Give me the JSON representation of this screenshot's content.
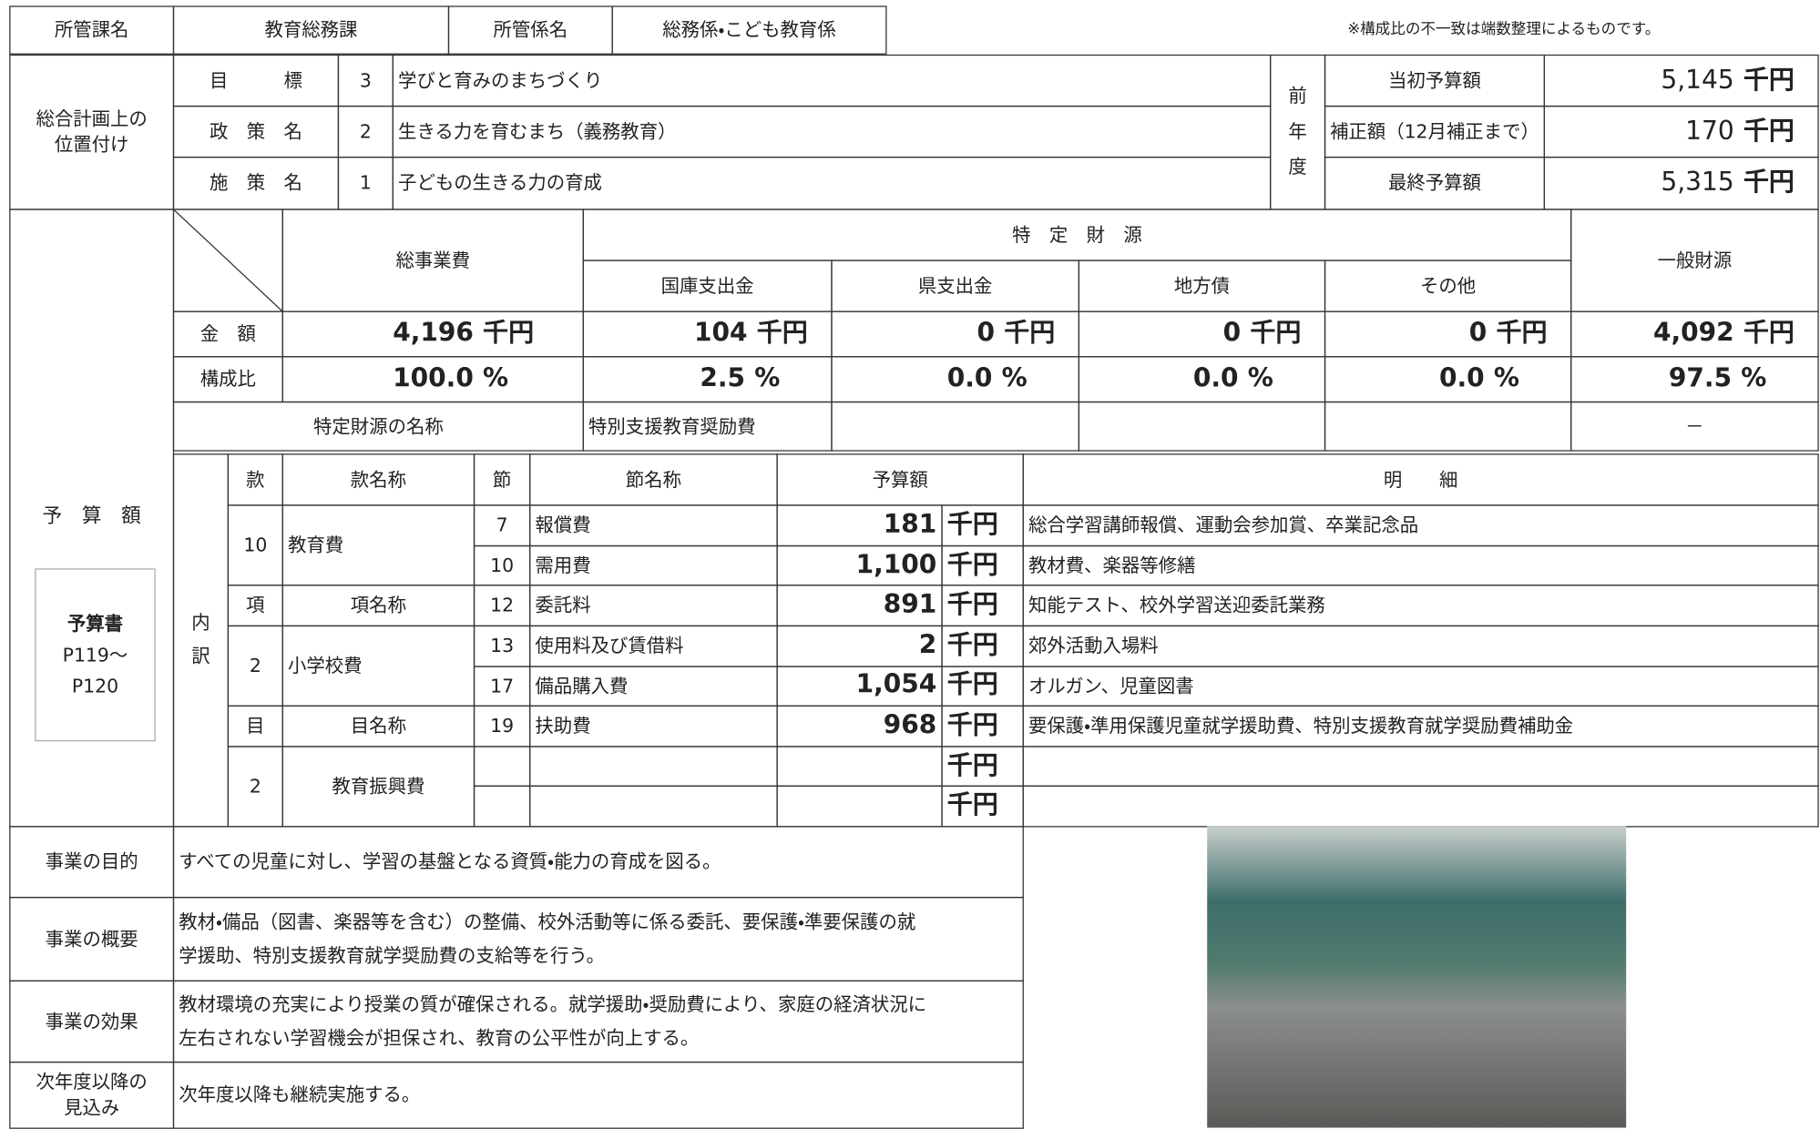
{
  "header": {
    "section_label": "所管課名",
    "section": "教育総務課",
    "unit_label": "所管係名",
    "unit": "総務係・こども教育係",
    "note": "※構成比の不一致は端数整理によるものです。"
  },
  "plan": {
    "label": [
      "総合計画上の",
      "位置付け"
    ],
    "rows": [
      {
        "label": "目　　　標",
        "no": "3",
        "text": "学びと育みのまちづくり"
      },
      {
        "label": "政　策　名",
        "no": "2",
        "text": "生きる力を育むまち（義務教育）"
      },
      {
        "label": "施　策　名",
        "no": "1",
        "text": "子どもの生きる力の育成"
      }
    ]
  },
  "previous_year": {
    "label": [
      "前",
      "年",
      "度"
    ],
    "rows": [
      {
        "label": "当初予算額",
        "value": "5,145",
        "unit": "千円"
      },
      {
        "label": "補正額（12月補正まで）",
        "value": "170",
        "unit": "千円"
      },
      {
        "label": "最終予算額",
        "value": "5,315",
        "unit": "千円"
      }
    ]
  },
  "budget": {
    "label": "予　算　額",
    "book": {
      "title": "予算書",
      "pages": [
        "P119～",
        "P120"
      ]
    },
    "funding": {
      "total": "総事業費",
      "specific": "特　定　財　源",
      "specific_cols": [
        "国庫支出金",
        "県支出金",
        "地方債",
        "その他"
      ],
      "general": "一般財源",
      "amount_label": "金　額",
      "amounts": [
        {
          "value": "4,196",
          "unit": "千円"
        },
        {
          "value": "104",
          "unit": "千円"
        },
        {
          "value": "0",
          "unit": "千円"
        },
        {
          "value": "0",
          "unit": "千円"
        },
        {
          "value": "0",
          "unit": "千円"
        },
        {
          "value": "4,092",
          "unit": "千円"
        }
      ],
      "ratio_label": "構成比",
      "ratios": [
        {
          "value": "100.0",
          "unit": "%"
        },
        {
          "value": "2.5",
          "unit": "%"
        },
        {
          "value": "0.0",
          "unit": "%"
        },
        {
          "value": "0.0",
          "unit": "%"
        },
        {
          "value": "0.0",
          "unit": "%"
        },
        {
          "value": "97.5",
          "unit": "%"
        }
      ],
      "source_name_label": "特定財源の名称",
      "source_national": "特別支援教育奨励費",
      "source_general": "－"
    },
    "breakdown": {
      "label": [
        "内",
        "訳"
      ],
      "kan_header": [
        "款",
        "款名称"
      ],
      "kan": [
        "10",
        "教育費"
      ],
      "kou_header": [
        "項",
        "項名称"
      ],
      "kou": [
        "2",
        "小学校費"
      ],
      "moku_header": [
        "目",
        "目名称"
      ],
      "moku": [
        "2",
        "教育振興費"
      ],
      "columns": [
        "節",
        "節名称",
        "予算額",
        "明　　細"
      ],
      "rows": [
        {
          "no": "7",
          "name": "報償費",
          "amount": "181",
          "unit": "千円",
          "detail": "総合学習講師報償、運動会参加賞、卒業記念品"
        },
        {
          "no": "10",
          "name": "需用費",
          "amount": "1,100",
          "unit": "千円",
          "detail": "教材費、楽器等修繕"
        },
        {
          "no": "12",
          "name": "委託料",
          "amount": "891",
          "unit": "千円",
          "detail": "知能テスト、校外学習送迎委託業務"
        },
        {
          "no": "13",
          "name": "使用料及び賃借料",
          "amount": "2",
          "unit": "千円",
          "detail": "郊外活動入場料"
        },
        {
          "no": "17",
          "name": "備品購入費",
          "amount": "1,054",
          "unit": "千円",
          "detail": "オルガン、児童図書"
        },
        {
          "no": "19",
          "name": "扶助費",
          "amount": "968",
          "unit": "千円",
          "detail": "要保護・準用保護児童就学援助費、特別支援教育就学奨励費補助金"
        },
        {
          "unit": "千円"
        },
        {
          "unit": "千円"
        }
      ]
    }
  },
  "details": [
    {
      "label": [
        "事業の目的"
      ],
      "text": [
        "すべての児童に対し、学習の基盤となる資質・能力の育成を図る。"
      ]
    },
    {
      "label": [
        "事業の概要"
      ],
      "text": [
        "教材・備品（図書、楽器等を含む）の整備、校外活動等に係る委託、要保護・準要保護の就",
        "学援助、特別支援教育就学奨励費の支給等を行う。"
      ]
    },
    {
      "label": [
        "事業の効果"
      ],
      "text": [
        "教材環境の充実により授業の質が確保される。就学援助・奨励費により、家庭の経済状況に",
        "左右されない学習機会が担保され、教育の公平性が向上する。"
      ]
    },
    {
      "label": [
        "次年度以降の",
        "見込み"
      ],
      "text": [
        "次年度以降も継続実施する。"
      ]
    }
  ]
}
